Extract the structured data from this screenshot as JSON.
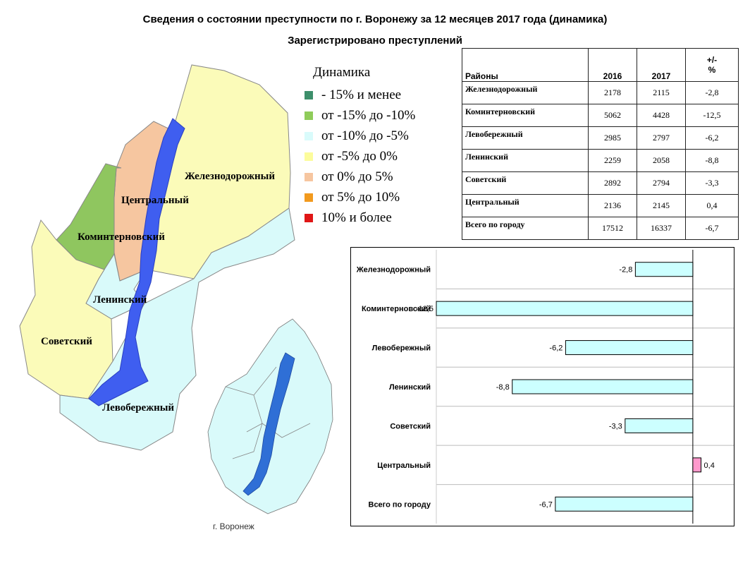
{
  "titles": {
    "main": "Сведения о состоянии преступности по г. Воронежу за 12 месяцев 2017 года (динамика)",
    "sub": "Зарегистрировано преступлений"
  },
  "legend": {
    "title": "Динамика",
    "items": [
      {
        "label": "- 15% и менее",
        "color": "#3d8f6b"
      },
      {
        "label": "от -15% до -10%",
        "color": "#8fcc5a"
      },
      {
        "label": "от -10% до -5%",
        "color": "#d9fbfb"
      },
      {
        "label": "от -5% до 0%",
        "color": "#fcfc9c"
      },
      {
        "label": "от 0% до 5%",
        "color": "#f6c6a0"
      },
      {
        "label": "от 5% до 10%",
        "color": "#f29a1e"
      },
      {
        "label": "10% и более",
        "color": "#e01616"
      }
    ]
  },
  "map": {
    "districts": {
      "zheleznodorozhny": "Железнодорожный",
      "tsentralny": "Центральный",
      "kominternovsky": "Коминтерновский",
      "leninsky": "Ленинский",
      "sovetsky": "Советский",
      "levoberezhny": "Левобережный"
    },
    "colors": {
      "zheleznodorozhny": "#fbfbb9",
      "tsentralny": "#f6c6a0",
      "kominternovsky": "#8fc65f",
      "leninsky": "#d9fafa",
      "sovetsky": "#fbfbb9",
      "levoberezhny": "#d9fafa",
      "river": "#3f5ef0"
    },
    "inset_caption": "г. Воронеж"
  },
  "table": {
    "headers": {
      "district": "Районы",
      "y2016": "2016",
      "y2017": "2017",
      "change": "+/-\n%"
    },
    "rows": [
      {
        "district": "Железнодорожный",
        "y2016": "2178",
        "y2017": "2115",
        "change": "-2,8"
      },
      {
        "district": "Коминтерновский",
        "y2016": "5062",
        "y2017": "4428",
        "change": "-12,5"
      },
      {
        "district": "Левобережный",
        "y2016": "2985",
        "y2017": "2797",
        "change": "-6,2"
      },
      {
        "district": "Ленинский",
        "y2016": "2259",
        "y2017": "2058",
        "change": "-8,8"
      },
      {
        "district": "Советский",
        "y2016": "2892",
        "y2017": "2794",
        "change": "-3,3"
      },
      {
        "district": "Центральный",
        "y2016": "2136",
        "y2017": "2145",
        "change": "0,4"
      },
      {
        "district": "Всего по городу",
        "y2016": "17512",
        "y2017": "16337",
        "change": "-6,7"
      }
    ]
  },
  "chart_data": {
    "type": "bar",
    "orientation": "horizontal",
    "categories": [
      "Железнодорожный",
      "Коминтерновский",
      "Левобережный",
      "Ленинский",
      "Советский",
      "Центральный",
      "Всего по городу"
    ],
    "values": [
      -2.8,
      -12.5,
      -6.2,
      -8.8,
      -3.3,
      0.4,
      -6.7
    ],
    "labels": [
      "-2,8",
      "-12,5",
      "-6,2",
      "-8,8",
      "-3,3",
      "0,4",
      "-6,7"
    ],
    "negative_color": "#ccffff",
    "positive_color": "#ff99cc",
    "xlim": [
      -12.5,
      1.0
    ],
    "grid": true
  }
}
